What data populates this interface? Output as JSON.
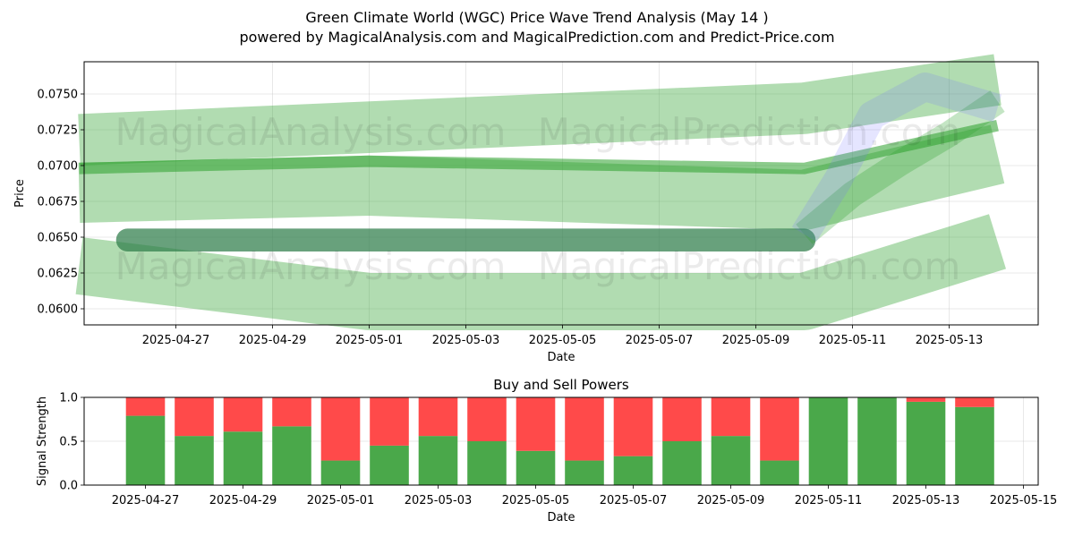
{
  "chart_data": [
    {
      "type": "area",
      "title": "Green Climate World (WGC) Price Wave Trend Analysis (May 14 )",
      "subtitle": "powered by MagicalAnalysis.com and MagicalPrediction.com and Predict-Price.com",
      "xlabel": "Date",
      "ylabel": "Price",
      "xlim": [
        "2025-04-25",
        "2025-05-15"
      ],
      "ylim": [
        0.0589,
        0.0773
      ],
      "x_ticks": [
        "2025-04-27",
        "2025-04-29",
        "2025-05-01",
        "2025-05-03",
        "2025-05-05",
        "2025-05-07",
        "2025-05-09",
        "2025-05-11",
        "2025-05-13"
      ],
      "y_ticks": [
        "0.0600",
        "0.0625",
        "0.0650",
        "0.0675",
        "0.0700",
        "0.0725",
        "0.0750"
      ],
      "grid": true,
      "watermarks": [
        "MagicalAnalysis.com",
        "MagicalPrediction.com",
        "MagicalAnalysis.com",
        "MagicalPrediction.com"
      ],
      "series": [
        {
          "name": "upper-wave-band",
          "color": "#2ca02c",
          "points": [
            [
              "2025-04-25",
              0.0718
            ],
            [
              "2025-05-10",
              0.074
            ],
            [
              "2025-05-14",
              0.076
            ]
          ]
        },
        {
          "name": "middle-wave-band",
          "color": "#2ca02c",
          "points": [
            [
              "2025-04-25",
              0.0681
            ],
            [
              "2025-05-01",
              0.0686
            ],
            [
              "2025-05-10",
              0.0676
            ],
            [
              "2025-05-14",
              0.0708
            ]
          ]
        },
        {
          "name": "lower-wave-band",
          "color": "#2ca02c",
          "points": [
            [
              "2025-04-25",
              0.063
            ],
            [
              "2025-05-01",
              0.0605
            ],
            [
              "2025-05-10",
              0.0605
            ],
            [
              "2025-05-14",
              0.0647
            ]
          ]
        },
        {
          "name": "thin-trend-line",
          "color": "#2ca02c",
          "points": [
            [
              "2025-04-25",
              0.0698
            ],
            [
              "2025-05-01",
              0.0703
            ],
            [
              "2025-05-10",
              0.0698
            ],
            [
              "2025-05-14",
              0.0728
            ]
          ]
        },
        {
          "name": "price-line",
          "color": "#2e7d4a",
          "points": [
            [
              "2025-04-26",
              0.0648
            ],
            [
              "2025-05-10",
              0.0648
            ]
          ]
        },
        {
          "name": "projection-green",
          "color": "#2ca02c",
          "points": [
            [
              "2025-05-10",
              0.0652
            ],
            [
              "2025-05-11",
              0.068
            ],
            [
              "2025-05-12",
              0.0702
            ],
            [
              "2025-05-13",
              0.0722
            ],
            [
              "2025-05-14",
              0.0745
            ]
          ]
        },
        {
          "name": "projection-blue",
          "color": "#7070ff",
          "points": [
            [
              "2025-05-10",
              0.0652
            ],
            [
              "2025-05-10.7",
              0.069
            ],
            [
              "2025-05-11.4",
              0.0735
            ],
            [
              "2025-05-12.5",
              0.0755
            ],
            [
              "2025-05-14",
              0.074
            ]
          ]
        }
      ]
    },
    {
      "type": "bar",
      "stacked": true,
      "title": "Buy and Sell Powers",
      "xlabel": "Date",
      "ylabel": "Signal Strength",
      "ylim": [
        0,
        1.0
      ],
      "x_ticks": [
        "2025-04-27",
        "2025-04-29",
        "2025-05-01",
        "2025-05-03",
        "2025-05-05",
        "2025-05-07",
        "2025-05-09",
        "2025-05-11",
        "2025-05-13",
        "2025-05-15"
      ],
      "y_ticks": [
        "0.0",
        "0.5",
        "1.0"
      ],
      "categories": [
        "2025-04-27",
        "2025-04-28",
        "2025-04-29",
        "2025-04-30",
        "2025-05-01",
        "2025-05-02",
        "2025-05-03",
        "2025-05-04",
        "2025-05-05",
        "2025-05-06",
        "2025-05-07",
        "2025-05-08",
        "2025-05-09",
        "2025-05-10",
        "2025-05-11",
        "2025-05-12",
        "2025-05-13",
        "2025-05-14"
      ],
      "series": [
        {
          "name": "Buy",
          "color": "#4aa84a",
          "values": [
            0.79,
            0.56,
            0.61,
            0.67,
            0.28,
            0.45,
            0.56,
            0.5,
            0.39,
            0.28,
            0.33,
            0.5,
            0.56,
            0.28,
            1.0,
            1.0,
            0.95,
            0.89
          ]
        },
        {
          "name": "Sell",
          "color": "#ff4a4a",
          "values": [
            0.21,
            0.44,
            0.39,
            0.33,
            0.72,
            0.55,
            0.44,
            0.5,
            0.61,
            0.72,
            0.67,
            0.5,
            0.44,
            0.72,
            0.0,
            0.0,
            0.05,
            0.11
          ]
        }
      ]
    }
  ]
}
